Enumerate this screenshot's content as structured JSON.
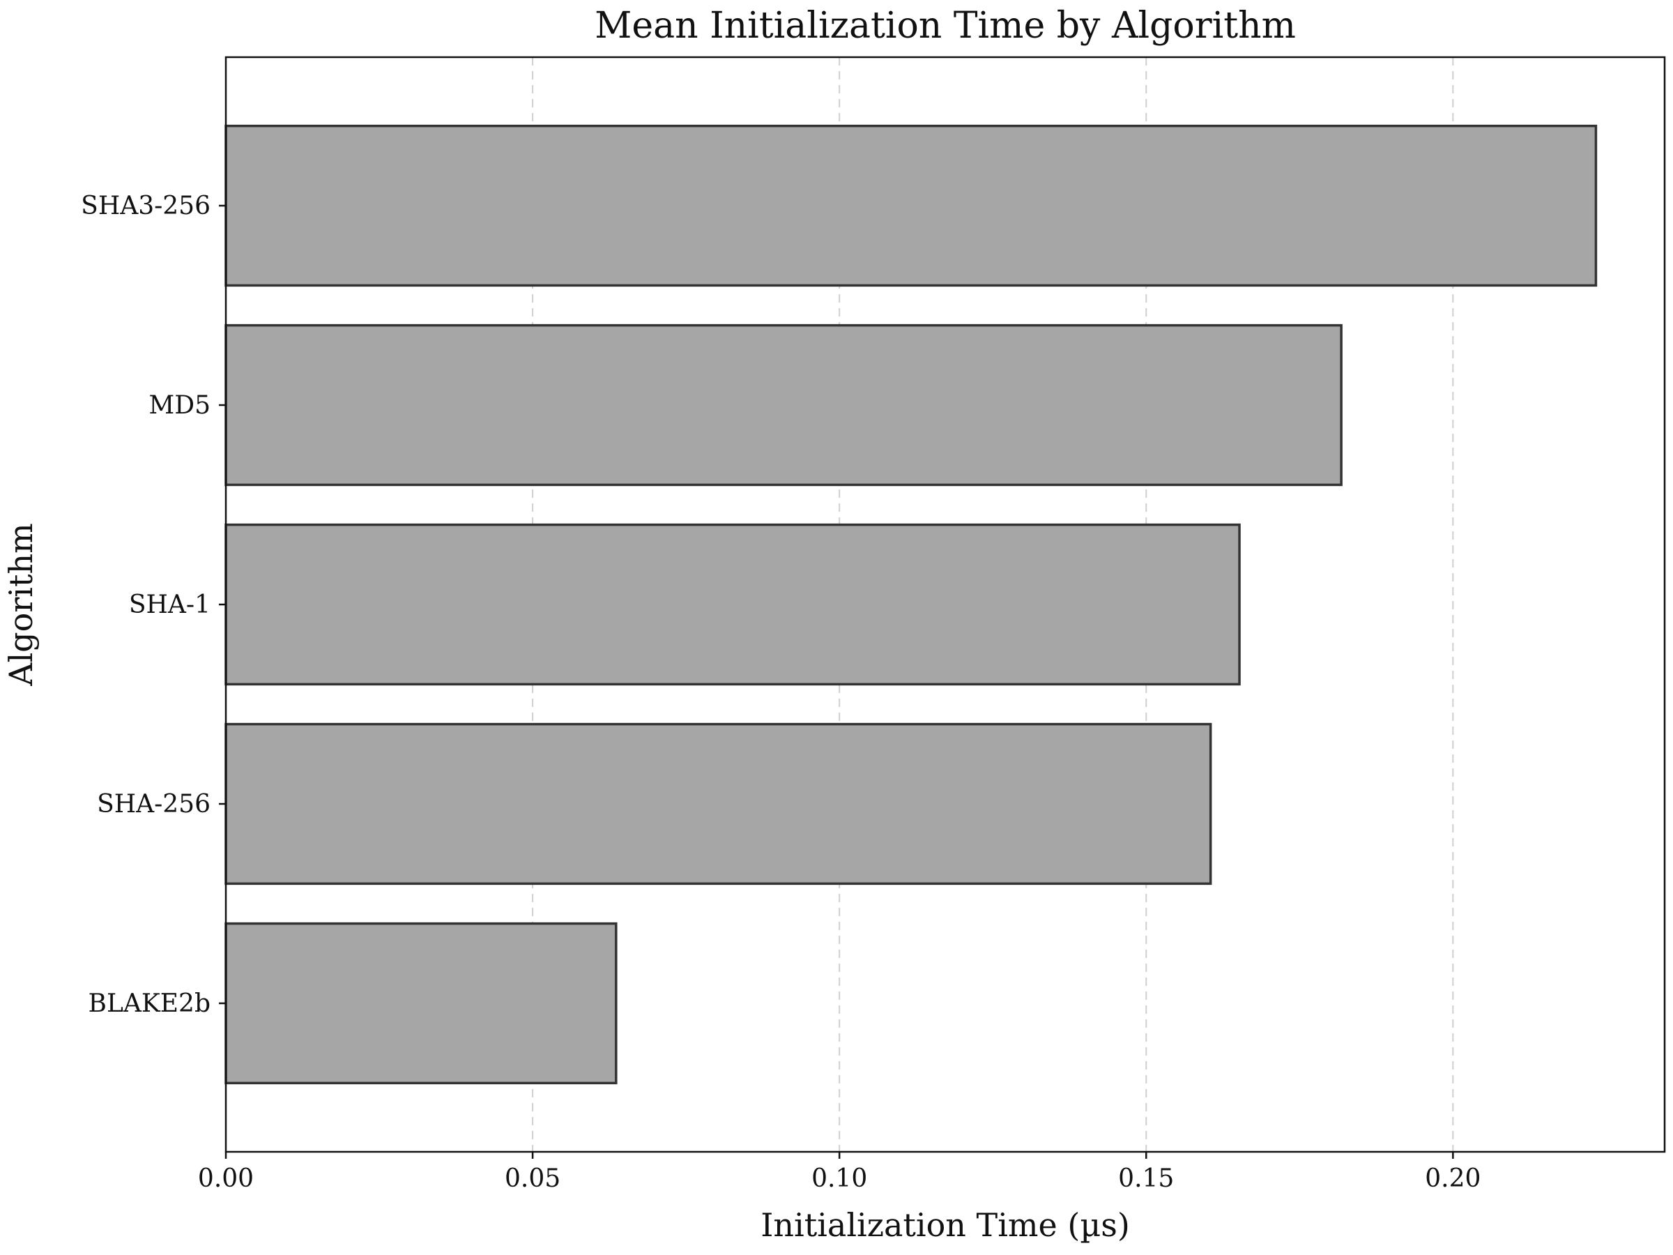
{
  "chart_data": {
    "type": "bar",
    "orientation": "horizontal",
    "title": "Mean Initialization Time by Algorithm",
    "xlabel": "Initialization Time (µs)",
    "ylabel": "Algorithm",
    "categories": [
      "SHA3-256",
      "MD5",
      "SHA-1",
      "SHA-256",
      "BLAKE2b"
    ],
    "values": [
      0.2233,
      0.1818,
      0.1652,
      0.1605,
      0.0636
    ],
    "xlim": [
      0,
      0.2345
    ],
    "xticks": [
      0.0,
      0.05,
      0.1,
      0.15,
      0.2
    ],
    "xtick_labels": [
      "0.00",
      "0.05",
      "0.10",
      "0.15",
      "0.20"
    ],
    "grid": "x-dashed",
    "colors": {
      "bar_fill": "#a6a6a6",
      "bar_edge": "#333333",
      "grid": "#cfcfcf"
    }
  }
}
